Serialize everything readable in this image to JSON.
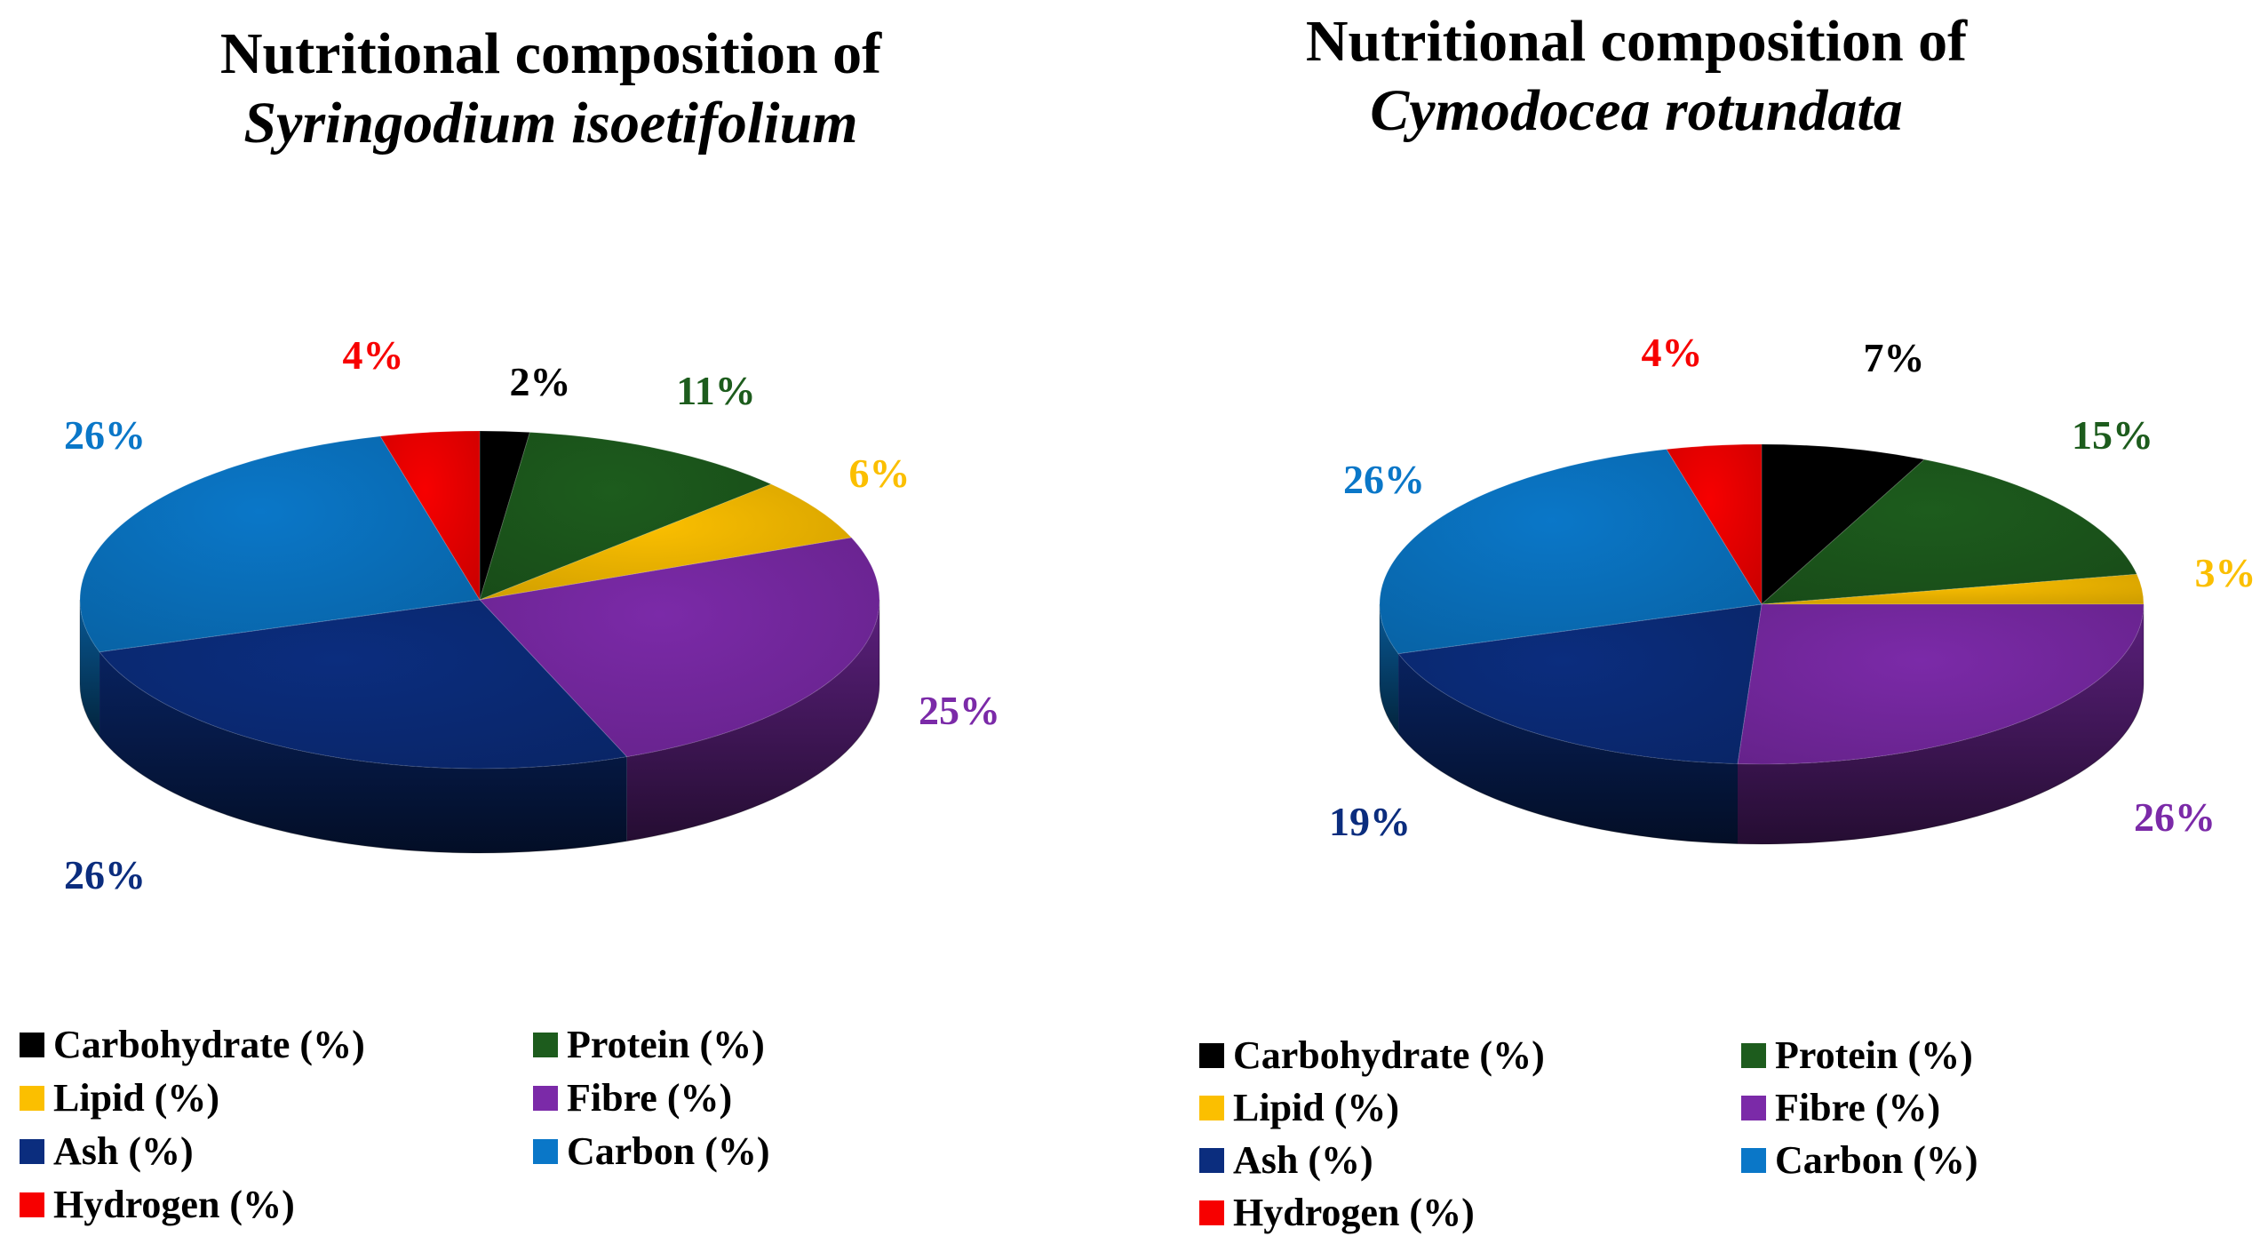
{
  "chart_data": [
    {
      "type": "pie",
      "title": "Nutritional composition of",
      "species": "Syringodium isoetifolium",
      "categories": [
        "Carbohydrate (%)",
        "Protein (%)",
        "Lipid (%)",
        "Fibre (%)",
        "Ash (%)",
        "Carbon (%)",
        "Hydrogen (%)"
      ],
      "values": [
        2,
        11,
        6,
        25,
        26,
        26,
        4
      ],
      "labels": [
        "2%",
        "11%",
        "6%",
        "25%",
        "26%",
        "26%",
        "4%"
      ],
      "colors": [
        "#000000",
        "#1d5c1d",
        "#fbbf00",
        "#7b2aa8",
        "#0b2d7e",
        "#0a77c8",
        "#f70000"
      ],
      "legend_position": "bottom",
      "style": "3d-pie"
    },
    {
      "type": "pie",
      "title": "Nutritional composition of",
      "species": "Cymodocea rotundata",
      "categories": [
        "Carbohydrate (%)",
        "Protein (%)",
        "Lipid (%)",
        "Fibre (%)",
        "Ash (%)",
        "Carbon (%)",
        "Hydrogen (%)"
      ],
      "values": [
        7,
        15,
        3,
        26,
        19,
        26,
        4
      ],
      "labels": [
        "7%",
        "15%",
        "3%",
        "26%",
        "19%",
        "26%",
        "4%"
      ],
      "colors": [
        "#000000",
        "#1d5c1d",
        "#fbbf00",
        "#7b2aa8",
        "#0b2d7e",
        "#0a77c8",
        "#f70000"
      ],
      "legend_position": "bottom",
      "style": "3d-pie"
    }
  ]
}
